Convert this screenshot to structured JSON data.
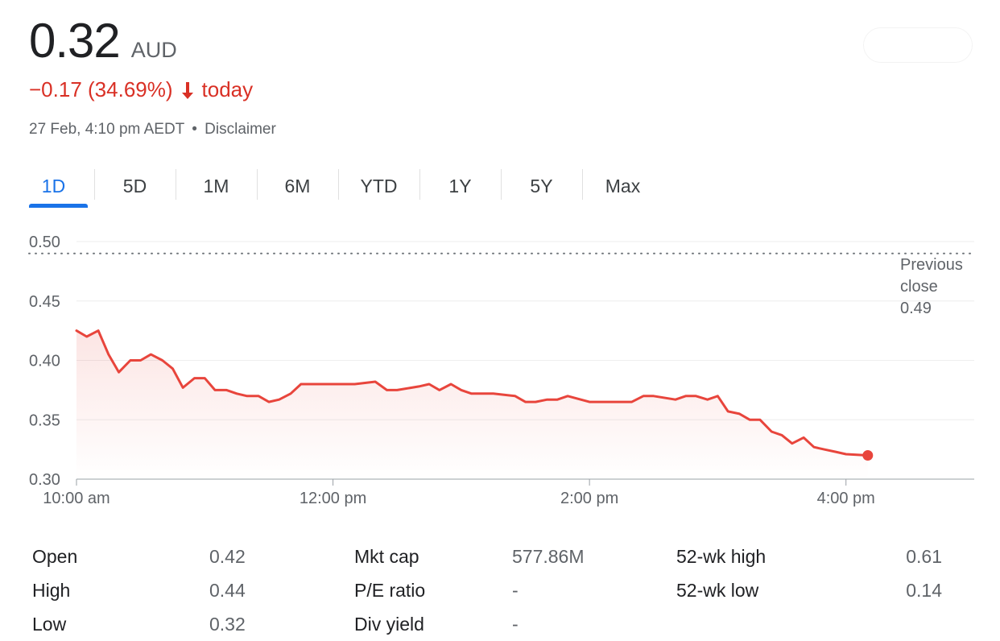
{
  "quote": {
    "price": "0.32",
    "currency": "AUD",
    "change": "−0.17 (34.69%)",
    "change_suffix": "today",
    "timestamp": "27 Feb, 4:10 pm AEDT",
    "separator": "•",
    "disclaimer": "Disclaimer",
    "down_color": "#d93025"
  },
  "tabs": [
    {
      "label": "1D",
      "active": true
    },
    {
      "label": "5D",
      "active": false
    },
    {
      "label": "1M",
      "active": false
    },
    {
      "label": "6M",
      "active": false
    },
    {
      "label": "YTD",
      "active": false
    },
    {
      "label": "1Y",
      "active": false
    },
    {
      "label": "5Y",
      "active": false
    },
    {
      "label": "Max",
      "active": false
    }
  ],
  "chart_data": {
    "type": "line",
    "line_color": "#e8453c",
    "ylim": [
      0.3,
      0.5
    ],
    "yticks": [
      "0.50",
      "0.45",
      "0.40",
      "0.35",
      "0.30"
    ],
    "ytick_values": [
      0.5,
      0.45,
      0.4,
      0.35,
      0.3
    ],
    "xlim_hours": [
      10.0,
      17.0
    ],
    "xticks": [
      {
        "label": "10:00 am",
        "hour": 10.0
      },
      {
        "label": "12:00 pm",
        "hour": 12.0
      },
      {
        "label": "2:00 pm",
        "hour": 14.0
      },
      {
        "label": "4:00 pm",
        "hour": 16.0
      }
    ],
    "previous_close": {
      "label_line1": "Previous",
      "label_line2": "close",
      "value_text": "0.49",
      "value": 0.49
    },
    "series": [
      {
        "x_hours": [
          10.0,
          10.08,
          10.17,
          10.25,
          10.33,
          10.42,
          10.5,
          10.58,
          10.67,
          10.75,
          10.83,
          10.92,
          11.0,
          11.08,
          11.17,
          11.25,
          11.33,
          11.42,
          11.5,
          11.58,
          11.67,
          11.75,
          11.83,
          12.0,
          12.17,
          12.33,
          12.42,
          12.5,
          12.67,
          12.75,
          12.83,
          12.92,
          13.0,
          13.08,
          13.17,
          13.25,
          13.42,
          13.5,
          13.58,
          13.67,
          13.75,
          13.83,
          14.0,
          14.17,
          14.33,
          14.42,
          14.5,
          14.67,
          14.75,
          14.83,
          14.92,
          15.0,
          15.08,
          15.17,
          15.25,
          15.33,
          15.42,
          15.5,
          15.58,
          15.67,
          15.75,
          15.83,
          15.92,
          16.0,
          16.17
        ],
        "y": [
          0.425,
          0.42,
          0.425,
          0.405,
          0.39,
          0.4,
          0.4,
          0.405,
          0.4,
          0.393,
          0.377,
          0.385,
          0.385,
          0.375,
          0.375,
          0.372,
          0.37,
          0.37,
          0.365,
          0.367,
          0.372,
          0.38,
          0.38,
          0.38,
          0.38,
          0.382,
          0.375,
          0.375,
          0.378,
          0.38,
          0.375,
          0.38,
          0.375,
          0.372,
          0.372,
          0.372,
          0.37,
          0.365,
          0.365,
          0.367,
          0.367,
          0.37,
          0.365,
          0.365,
          0.365,
          0.37,
          0.37,
          0.367,
          0.37,
          0.37,
          0.367,
          0.37,
          0.357,
          0.355,
          0.35,
          0.35,
          0.34,
          0.337,
          0.33,
          0.335,
          0.327,
          0.325,
          0.323,
          0.321,
          0.32
        ]
      }
    ]
  },
  "stats": [
    {
      "label": "Open",
      "value": "0.42"
    },
    {
      "label": "Mkt cap",
      "value": "577.86M"
    },
    {
      "label": "52-wk high",
      "value": "0.61"
    },
    {
      "label": "High",
      "value": "0.44"
    },
    {
      "label": "P/E ratio",
      "value": "-"
    },
    {
      "label": "52-wk low",
      "value": "0.14"
    },
    {
      "label": "Low",
      "value": "0.32"
    },
    {
      "label": "Div yield",
      "value": "-"
    }
  ]
}
